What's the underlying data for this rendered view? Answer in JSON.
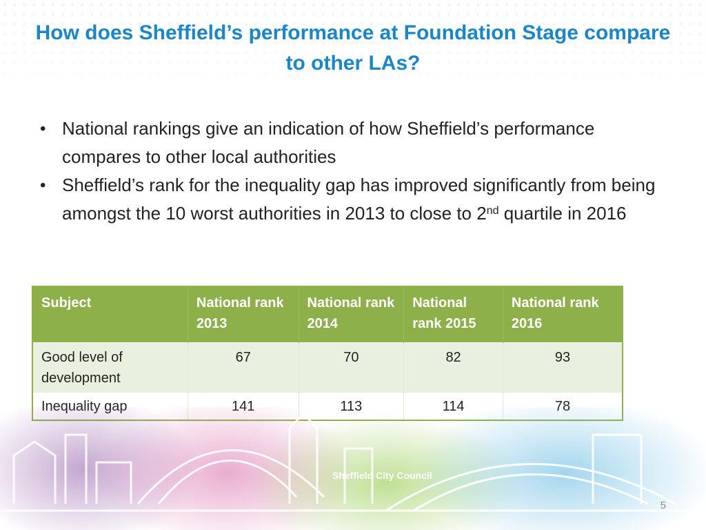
{
  "slide": {
    "title": "How does Sheffield’s performance at Foundation Stage compare to other LAs?",
    "bullets": [
      "National rankings give an indication of how Sheffield’s performance compares to other local authorities",
      "Sheffield’s rank for the inequality gap has improved significantly from being amongst the 10 worst authorities in 2013 to close to 2"
    ],
    "bullet2_sup": "nd",
    "bullet2_tail": " quartile in 2016",
    "bullet_glyph": "•",
    "page_number": "5",
    "logo_text": "Sheffield City Council"
  },
  "table": {
    "headers": [
      "Subject",
      "National rank 2013",
      "National rank 2014",
      "National rank 2015",
      "National rank 2016"
    ],
    "rows": [
      {
        "subject": "Good level of development",
        "values": [
          "67",
          "70",
          "82",
          "93"
        ]
      },
      {
        "subject": "Inequality gap",
        "values": [
          "141",
          "113",
          "114",
          "78"
        ]
      }
    ]
  },
  "colors": {
    "title": "#1a86c8",
    "table_header": "#8db04a",
    "table_row_alt": "#e9f0df"
  }
}
